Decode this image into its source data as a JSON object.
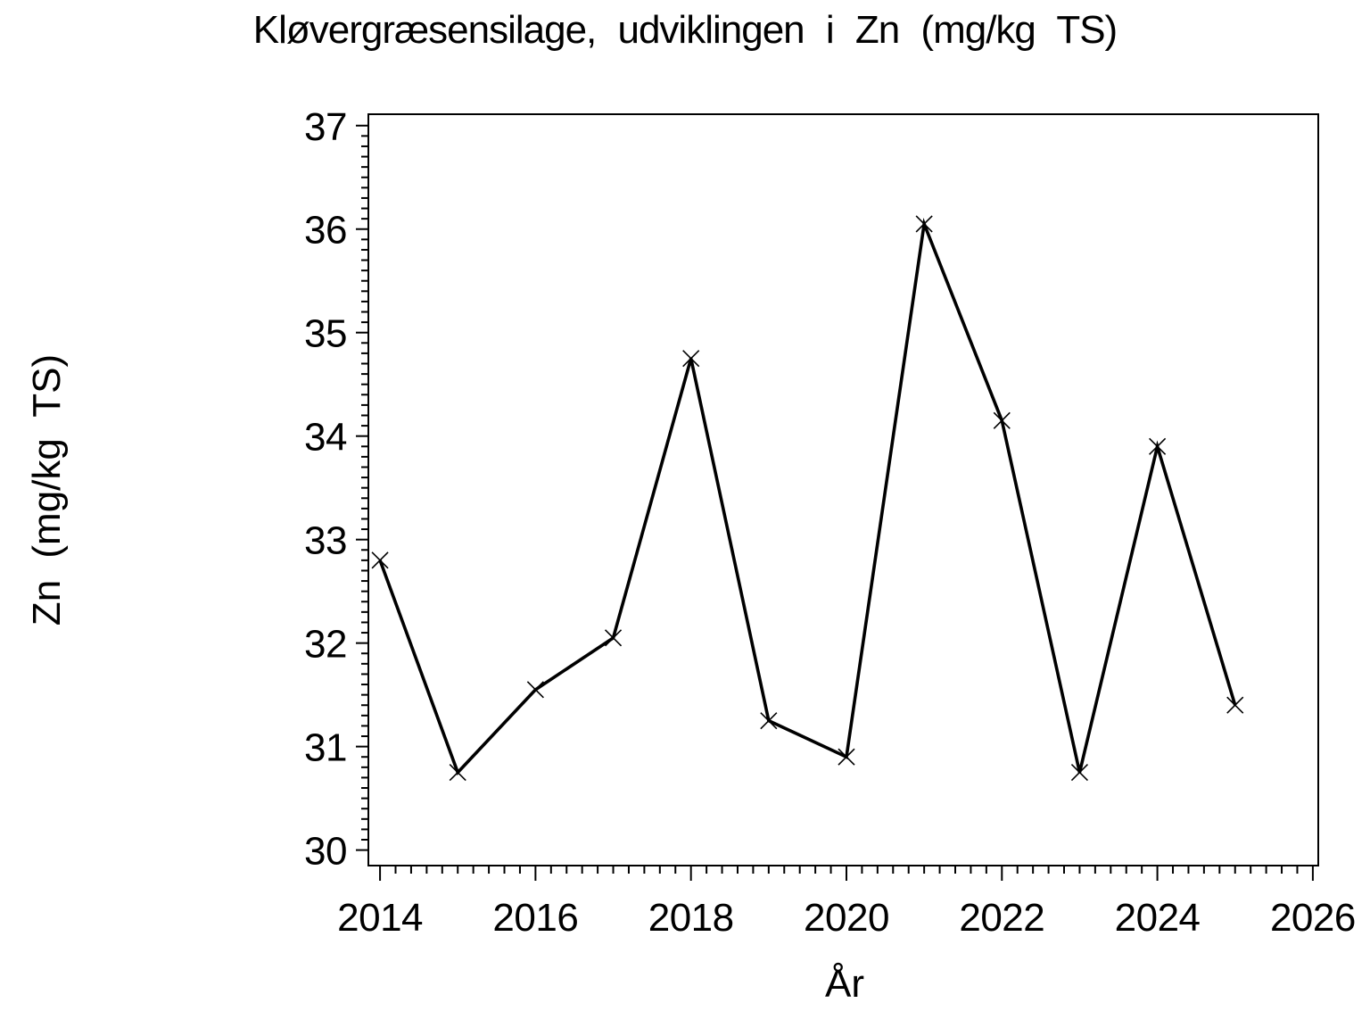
{
  "page": {
    "background": "#ffffff",
    "foreground": "#000000"
  },
  "chart_data": {
    "type": "line",
    "title": "Kløvergræsensilage, udviklingen i Zn (mg/kg TS)",
    "xlabel": "År",
    "ylabel": "Zn (mg/kg TS)",
    "x": [
      2014,
      2015,
      2016,
      2017,
      2018,
      2019,
      2020,
      2021,
      2022,
      2023,
      2024,
      2025
    ],
    "values": [
      32.8,
      30.75,
      31.55,
      32.05,
      34.75,
      31.25,
      30.9,
      36.05,
      34.15,
      30.75,
      33.9,
      31.4
    ],
    "xticks": [
      2014,
      2016,
      2018,
      2020,
      2022,
      2024,
      2026
    ],
    "yticks": [
      30,
      31,
      32,
      33,
      34,
      35,
      36,
      37
    ],
    "xlim": [
      2013.85,
      2026.07
    ],
    "ylim": [
      29.85,
      37.11
    ],
    "x_minor_step": 0.2,
    "y_minor_step": 0.1,
    "marker": "x",
    "line_color": "#000000",
    "text_color": "#000000",
    "grid": false,
    "legend_position": "none"
  }
}
